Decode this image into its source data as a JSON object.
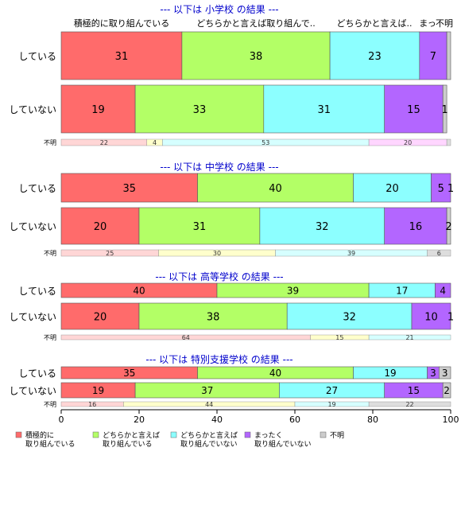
{
  "chart_data": {
    "type": "bar",
    "orientation": "horizontal",
    "stacked": true,
    "xlim": [
      0,
      100
    ],
    "x_ticks": [
      "0",
      "20",
      "40",
      "60",
      "80",
      "100"
    ],
    "top_column_labels": [
      "積極的に取り組んでいる",
      "どちらかと言えば取り組んで..",
      "どちらかと言えば..",
      "まっ",
      "不明"
    ],
    "legend": {
      "placement": "bottom",
      "entries": [
        {
          "label": [
            "積極的に",
            "取り組んでいる"
          ],
          "color": "#FF6B6B"
        },
        {
          "label": [
            "どちらかと言えば",
            "取り組んでいる"
          ],
          "color": "#B3FF66"
        },
        {
          "label": [
            "どちらかと言えば",
            "取り組んでいない"
          ],
          "color": "#8CFFFF"
        },
        {
          "label": [
            "まったく",
            "取り組んでいない"
          ],
          "color": "#B366FF"
        },
        {
          "label": [
            "不明"
          ],
          "color": "#CCCCCC"
        }
      ]
    },
    "panels": [
      {
        "title": "--- 以下は 小学校 の結果 ---",
        "rows": [
          {
            "label": "している",
            "values": [
              31,
              38,
              23,
              7,
              1
            ],
            "labels": [
              "31",
              "38",
              "23",
              "7",
              ""
            ]
          },
          {
            "label": "していない",
            "values": [
              19,
              33,
              31,
              15,
              1
            ],
            "labels": [
              "19",
              "33",
              "31",
              "15",
              "1"
            ]
          }
        ],
        "unknown_row": {
          "label": "不明",
          "values": [
            22,
            4,
            53,
            20,
            1
          ],
          "labels": [
            "22",
            "4",
            "53",
            "20",
            ""
          ]
        }
      },
      {
        "title": "--- 以下は 中学校 の結果 ---",
        "rows": [
          {
            "label": "している",
            "values": [
              35,
              40,
              20,
              5,
              1
            ],
            "labels": [
              "35",
              "40",
              "20",
              "5",
              "1"
            ]
          },
          {
            "label": "していない",
            "values": [
              20,
              31,
              32,
              16,
              2
            ],
            "labels": [
              "20",
              "31",
              "32",
              "16",
              "2"
            ]
          }
        ],
        "unknown_row": {
          "label": "不明",
          "values": [
            25,
            30,
            39,
            0,
            6
          ],
          "labels": [
            "25",
            "30",
            "39",
            "",
            "6"
          ]
        }
      },
      {
        "title": "--- 以下は 高等学校 の結果 ---",
        "rows": [
          {
            "label": "している",
            "values": [
              40,
              39,
              17,
              4,
              0.5
            ],
            "labels": [
              "40",
              "39",
              "17",
              "4",
              ""
            ]
          },
          {
            "label": "していない",
            "values": [
              20,
              38,
              32,
              10,
              1
            ],
            "labels": [
              "20",
              "38",
              "32",
              "10",
              "1"
            ]
          }
        ],
        "unknown_row": {
          "label": "不明",
          "values": [
            64,
            15,
            21,
            0,
            0
          ],
          "labels": [
            "64",
            "15",
            "21",
            "",
            ""
          ]
        }
      },
      {
        "title": "--- 以下は 特別支援学校 の結果 ---",
        "rows": [
          {
            "label": "している",
            "values": [
              35,
              40,
              19,
              3,
              3
            ],
            "labels": [
              "35",
              "40",
              "19",
              "3",
              "3"
            ]
          },
          {
            "label": "していない",
            "values": [
              19,
              37,
              27,
              15,
              2
            ],
            "labels": [
              "19",
              "37",
              "27",
              "15",
              "2"
            ]
          }
        ],
        "unknown_row": {
          "label": "不明",
          "values": [
            16,
            44,
            19,
            0,
            22
          ],
          "labels": [
            "16",
            "44",
            "19",
            "",
            "22"
          ]
        }
      }
    ]
  }
}
